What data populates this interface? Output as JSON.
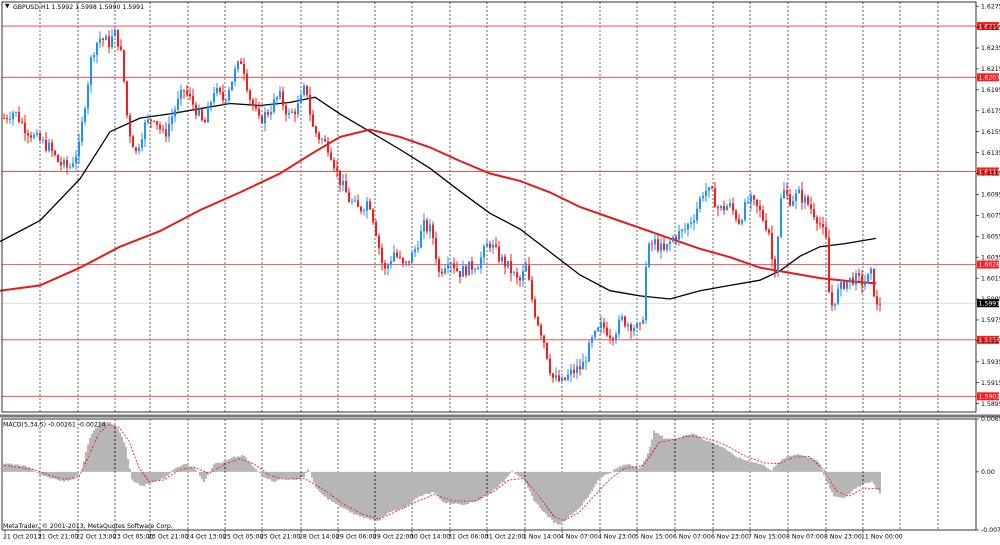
{
  "window": {
    "symbol_info": "GBPUSD,H1  1.5992 1.5998 1.5990 1.5991",
    "copyright": "MetaTrader, © 2001-2013, MetaQuotes Software Corp."
  },
  "colors": {
    "bull": "#1e90ff",
    "bear": "#ff1a1a",
    "ma_fast": "#000000",
    "ma_slow": "#e81818",
    "level": "#ff3030",
    "grid": "#000000",
    "macd_hist": "#6e6e6e",
    "macd_signal": "#ff2020"
  },
  "chart_data": [
    {
      "type": "candlestick",
      "symbol": "GBPUSD",
      "timeframe": "H1",
      "ylim": [
        1.5887,
        1.6279
      ],
      "y_ticks": [
        "1.6275",
        "1.6255",
        "1.6235",
        "1.6215",
        "1.6195",
        "1.6175",
        "1.6155",
        "1.6135",
        "1.6115",
        "1.6095",
        "1.6075",
        "1.6055",
        "1.6035",
        "1.6015",
        "1.5995",
        "1.5975",
        "1.5955",
        "1.5935",
        "1.5915",
        "1.5895"
      ],
      "x_ticks": [
        "21 Oct 2013",
        "21 Oct 21:00",
        "22 Oct 13:00",
        "23 Oct 05:00",
        "23 Oct 21:00",
        "24 Oct 13:00",
        "25 Oct 05:00",
        "25 Oct 21:00",
        "28 Oct 14:00",
        "29 Oct 06:00",
        "29 Oct 22:00",
        "30 Oct 14:00",
        "31 Oct 06:00",
        "31 Oct 22:00",
        "1 Nov 14:00",
        "4 Nov 07:00",
        "4 Nov 23:00",
        "5 Nov 15:00",
        "6 Nov 07:00",
        "6 Nov 23:00",
        "7 Nov 15:00",
        "8 Nov 07:00",
        "8 Nov 23:00",
        "11 Nov 00:00"
      ],
      "current_price": "1.5991",
      "price_levels": [
        {
          "label": "1.6256",
          "value": 1.6256
        },
        {
          "label": "1.6207",
          "value": 1.6207
        },
        {
          "label": "1.6117",
          "value": 1.6117
        },
        {
          "label": "1.6028",
          "value": 1.6028
        },
        {
          "label": "1.5956",
          "value": 1.5956
        },
        {
          "label": "1.5902",
          "value": 1.5902
        }
      ],
      "close_path": [
        [
          0,
          1.6168
        ],
        [
          10,
          1.6175
        ],
        [
          20,
          1.616
        ],
        [
          30,
          1.615
        ],
        [
          45,
          1.614
        ],
        [
          55,
          1.6125
        ],
        [
          65,
          1.612
        ],
        [
          75,
          1.614
        ],
        [
          82,
          1.619
        ],
        [
          88,
          1.623
        ],
        [
          95,
          1.6245
        ],
        [
          105,
          1.624
        ],
        [
          112,
          1.625
        ],
        [
          118,
          1.6225
        ],
        [
          124,
          1.616
        ],
        [
          132,
          1.6135
        ],
        [
          140,
          1.616
        ],
        [
          150,
          1.617
        ],
        [
          160,
          1.615
        ],
        [
          170,
          1.6175
        ],
        [
          180,
          1.6195
        ],
        [
          190,
          1.618
        ],
        [
          200,
          1.616
        ],
        [
          210,
          1.6195
        ],
        [
          220,
          1.6185
        ],
        [
          230,
          1.621
        ],
        [
          238,
          1.6225
        ],
        [
          245,
          1.619
        ],
        [
          255,
          1.6165
        ],
        [
          265,
          1.6175
        ],
        [
          275,
          1.619
        ],
        [
          285,
          1.617
        ],
        [
          295,
          1.618
        ],
        [
          302,
          1.62
        ],
        [
          308,
          1.616
        ],
        [
          315,
          1.615
        ],
        [
          325,
          1.614
        ],
        [
          335,
          1.611
        ],
        [
          345,
          1.609
        ],
        [
          355,
          1.608
        ],
        [
          365,
          1.609
        ],
        [
          372,
          1.606
        ],
        [
          380,
          1.602
        ],
        [
          390,
          1.604
        ],
        [
          400,
          1.6025
        ],
        [
          410,
          1.604
        ],
        [
          420,
          1.6065
        ],
        [
          428,
          1.606
        ],
        [
          435,
          1.602
        ],
        [
          445,
          1.6035
        ],
        [
          455,
          1.602
        ],
        [
          465,
          1.6025
        ],
        [
          475,
          1.603
        ],
        [
          485,
          1.605
        ],
        [
          495,
          1.6035
        ],
        [
          505,
          1.6025
        ],
        [
          515,
          1.601
        ],
        [
          522,
          1.6025
        ],
        [
          530,
          1.5985
        ],
        [
          540,
          1.5955
        ],
        [
          548,
          1.592
        ],
        [
          558,
          1.5915
        ],
        [
          568,
          1.5925
        ],
        [
          578,
          1.593
        ],
        [
          588,
          1.5955
        ],
        [
          598,
          1.597
        ],
        [
          608,
          1.596
        ],
        [
          618,
          1.5975
        ],
        [
          628,
          1.597
        ],
        [
          638,
          1.5965
        ],
        [
          643,
          1.604
        ],
        [
          650,
          1.605
        ],
        [
          660,
          1.604
        ],
        [
          670,
          1.6055
        ],
        [
          680,
          1.606
        ],
        [
          690,
          1.6075
        ],
        [
          700,
          1.61
        ],
        [
          708,
          1.6095
        ],
        [
          715,
          1.608
        ],
        [
          725,
          1.6085
        ],
        [
          735,
          1.607
        ],
        [
          745,
          1.609
        ],
        [
          755,
          1.608
        ],
        [
          765,
          1.606
        ],
        [
          770,
          1.6015
        ],
        [
          778,
          1.61
        ],
        [
          786,
          1.609
        ],
        [
          795,
          1.6095
        ],
        [
          805,
          1.6085
        ],
        [
          815,
          1.607
        ],
        [
          822,
          1.605
        ],
        [
          826,
          1.5985
        ],
        [
          833,
          1.6
        ],
        [
          840,
          1.601
        ],
        [
          850,
          1.6015
        ],
        [
          860,
          1.601
        ],
        [
          868,
          1.602
        ],
        [
          872,
          1.5985
        ],
        [
          876,
          1.5991
        ]
      ],
      "series": [
        {
          "name": "",
          "points": [
            [
              0,
              1.605
            ],
            [
              40,
              1.607
            ],
            [
              80,
              1.611
            ],
            [
              110,
              1.6155
            ],
            [
              140,
              1.6168
            ],
            [
              170,
              1.6172
            ],
            [
              200,
              1.6177
            ],
            [
              230,
              1.6182
            ],
            [
              260,
              1.618
            ],
            [
              290,
              1.6183
            ],
            [
              315,
              1.6188
            ],
            [
              340,
              1.6172
            ],
            [
              370,
              1.6155
            ],
            [
              400,
              1.6138
            ],
            [
              430,
              1.612
            ],
            [
              460,
              1.6098
            ],
            [
              490,
              1.6077
            ],
            [
              520,
              1.6062
            ],
            [
              550,
              1.604
            ],
            [
              580,
              1.6018
            ],
            [
              610,
              1.6003
            ],
            [
              640,
              1.5998
            ],
            [
              670,
              1.5995
            ],
            [
              700,
              1.6003
            ],
            [
              730,
              1.6008
            ],
            [
              760,
              1.6013
            ],
            [
              780,
              1.6022
            ],
            [
              800,
              1.6036
            ],
            [
              820,
              1.6045
            ],
            [
              845,
              1.6048
            ],
            [
              876,
              1.6053
            ]
          ]
        },
        {
          "name": "",
          "points": [
            [
              0,
              1.6003
            ],
            [
              40,
              1.6008
            ],
            [
              80,
              1.6025
            ],
            [
              120,
              1.6045
            ],
            [
              160,
              1.606
            ],
            [
              200,
              1.608
            ],
            [
              240,
              1.6097
            ],
            [
              280,
              1.6115
            ],
            [
              310,
              1.6133
            ],
            [
              340,
              1.615
            ],
            [
              370,
              1.6157
            ],
            [
              400,
              1.615
            ],
            [
              430,
              1.614
            ],
            [
              460,
              1.6127
            ],
            [
              490,
              1.6115
            ],
            [
              520,
              1.6108
            ],
            [
              550,
              1.6097
            ],
            [
              580,
              1.6083
            ],
            [
              610,
              1.6073
            ],
            [
              640,
              1.6063
            ],
            [
              670,
              1.6053
            ],
            [
              700,
              1.6043
            ],
            [
              730,
              1.6035
            ],
            [
              760,
              1.6025
            ],
            [
              790,
              1.602
            ],
            [
              820,
              1.6015
            ],
            [
              850,
              1.6012
            ],
            [
              876,
              1.601
            ]
          ]
        }
      ]
    },
    {
      "type": "bar",
      "title": "MACD(5,34,5) -0.00261 -0.00214",
      "ylim": [
        -0.00716,
        0.00651
      ],
      "y_ticks": [
        "0.00651",
        "0.00",
        "-0.00716"
      ],
      "hist_path": [
        [
          0,
          0.001
        ],
        [
          20,
          0.0008
        ],
        [
          30,
          0.0002
        ],
        [
          40,
          -0.0006
        ],
        [
          50,
          -0.0008
        ],
        [
          60,
          -0.0012
        ],
        [
          70,
          -0.0008
        ],
        [
          78,
          0.0002
        ],
        [
          85,
          0.004
        ],
        [
          95,
          0.006
        ],
        [
          105,
          0.0062
        ],
        [
          115,
          0.0052
        ],
        [
          122,
          0.003
        ],
        [
          128,
          -0.001
        ],
        [
          138,
          -0.0018
        ],
        [
          150,
          -0.0012
        ],
        [
          160,
          -0.0008
        ],
        [
          170,
          0.0003
        ],
        [
          180,
          0.001
        ],
        [
          190,
          0.0006
        ],
        [
          200,
          -0.0012
        ],
        [
          210,
          0.001
        ],
        [
          220,
          0.0012
        ],
        [
          230,
          0.0018
        ],
        [
          240,
          0.002
        ],
        [
          250,
          0.0005
        ],
        [
          260,
          -0.0006
        ],
        [
          270,
          -0.0012
        ],
        [
          280,
          -0.0008
        ],
        [
          290,
          -0.001
        ],
        [
          300,
          -0.0006
        ],
        [
          305,
          0.0004
        ],
        [
          312,
          -0.002
        ],
        [
          320,
          -0.003
        ],
        [
          335,
          -0.0042
        ],
        [
          350,
          -0.0052
        ],
        [
          365,
          -0.0058
        ],
        [
          375,
          -0.006
        ],
        [
          385,
          -0.005
        ],
        [
          400,
          -0.0045
        ],
        [
          415,
          -0.003
        ],
        [
          430,
          -0.0025
        ],
        [
          440,
          -0.0038
        ],
        [
          460,
          -0.004
        ],
        [
          475,
          -0.0035
        ],
        [
          490,
          -0.0022
        ],
        [
          500,
          -0.0012
        ],
        [
          508,
          0.0002
        ],
        [
          520,
          -0.001
        ],
        [
          530,
          -0.0035
        ],
        [
          540,
          -0.005
        ],
        [
          550,
          -0.0062
        ],
        [
          555,
          -0.0065
        ],
        [
          565,
          -0.0055
        ],
        [
          575,
          -0.0045
        ],
        [
          585,
          -0.003
        ],
        [
          595,
          -0.0008
        ],
        [
          605,
          -0.0002
        ],
        [
          615,
          0.0006
        ],
        [
          625,
          0.001
        ],
        [
          635,
          0.0004
        ],
        [
          643,
          0.0018
        ],
        [
          650,
          0.005
        ],
        [
          660,
          0.0042
        ],
        [
          670,
          0.004
        ],
        [
          680,
          0.0045
        ],
        [
          690,
          0.0047
        ],
        [
          700,
          0.004
        ],
        [
          710,
          0.0035
        ],
        [
          720,
          0.003
        ],
        [
          730,
          0.002
        ],
        [
          740,
          0.0015
        ],
        [
          750,
          0.0012
        ],
        [
          760,
          0.0008
        ],
        [
          768,
          0.0002
        ],
        [
          775,
          0.0012
        ],
        [
          785,
          0.002
        ],
        [
          795,
          0.0022
        ],
        [
          805,
          0.0018
        ],
        [
          815,
          0.0012
        ],
        [
          822,
          -0.001
        ],
        [
          830,
          -0.003
        ],
        [
          840,
          -0.0032
        ],
        [
          850,
          -0.0022
        ],
        [
          860,
          -0.0015
        ],
        [
          868,
          -0.0012
        ],
        [
          876,
          -0.0026
        ]
      ],
      "signal_path": [
        [
          0,
          0.0008
        ],
        [
          30,
          0.0003
        ],
        [
          45,
          -0.0004
        ],
        [
          60,
          -0.0009
        ],
        [
          75,
          -0.0006
        ],
        [
          85,
          0.002
        ],
        [
          95,
          0.0048
        ],
        [
          105,
          0.0058
        ],
        [
          115,
          0.0055
        ],
        [
          125,
          0.0038
        ],
        [
          135,
          0.0005
        ],
        [
          145,
          -0.0012
        ],
        [
          160,
          -0.001
        ],
        [
          175,
          0.0002
        ],
        [
          190,
          0.0006
        ],
        [
          205,
          -0.0002
        ],
        [
          220,
          0.0009
        ],
        [
          235,
          0.0016
        ],
        [
          250,
          0.001
        ],
        [
          265,
          -0.0004
        ],
        [
          280,
          -0.0009
        ],
        [
          300,
          -0.0008
        ],
        [
          320,
          -0.0022
        ],
        [
          340,
          -0.004
        ],
        [
          360,
          -0.0053
        ],
        [
          375,
          -0.0058
        ],
        [
          390,
          -0.005
        ],
        [
          410,
          -0.0038
        ],
        [
          430,
          -0.0028
        ],
        [
          450,
          -0.0036
        ],
        [
          470,
          -0.0036
        ],
        [
          490,
          -0.0024
        ],
        [
          505,
          -0.001
        ],
        [
          520,
          -0.0008
        ],
        [
          535,
          -0.003
        ],
        [
          550,
          -0.0055
        ],
        [
          560,
          -0.006
        ],
        [
          575,
          -0.005
        ],
        [
          590,
          -0.003
        ],
        [
          605,
          -0.001
        ],
        [
          620,
          0.0004
        ],
        [
          640,
          0.0008
        ],
        [
          655,
          0.0036
        ],
        [
          670,
          0.004
        ],
        [
          685,
          0.0044
        ],
        [
          700,
          0.0042
        ],
        [
          720,
          0.0034
        ],
        [
          740,
          0.002
        ],
        [
          760,
          0.0011
        ],
        [
          775,
          0.001
        ],
        [
          790,
          0.0018
        ],
        [
          805,
          0.0019
        ],
        [
          820,
          0.0002
        ],
        [
          833,
          -0.0024
        ],
        [
          845,
          -0.003
        ],
        [
          860,
          -0.002
        ],
        [
          876,
          -0.0021
        ]
      ]
    }
  ]
}
